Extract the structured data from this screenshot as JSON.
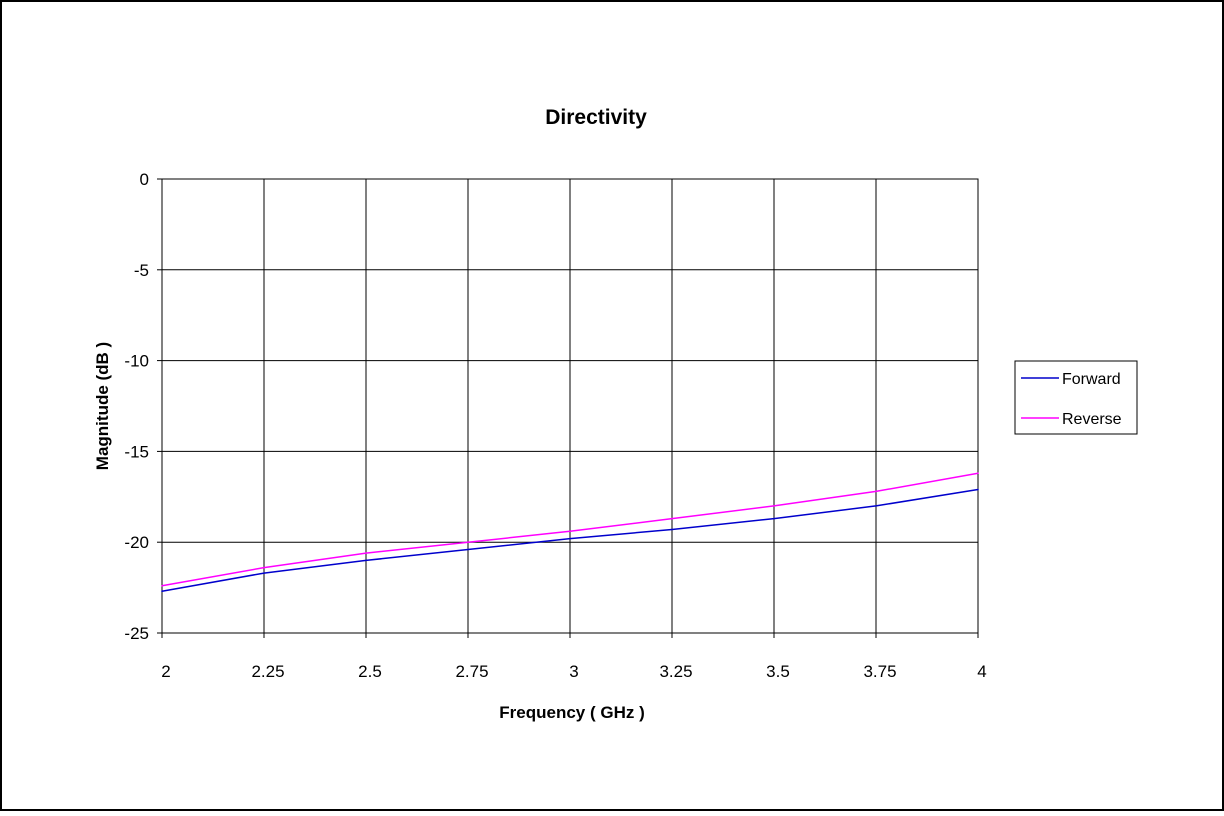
{
  "chart_data": {
    "type": "line",
    "title": "Directivity",
    "xlabel": "Frequency ( GHz )",
    "ylabel": "Magnitude (dB )",
    "xlim": [
      2,
      4
    ],
    "ylim": [
      -25,
      0
    ],
    "x_ticks": [
      "2",
      "2.25",
      "2.5",
      "2.75",
      "3",
      "3.25",
      "3.5",
      "3.75",
      "4"
    ],
    "y_ticks": [
      "0",
      "-5",
      "-10",
      "-15",
      "-20",
      "-25"
    ],
    "grid": true,
    "legend_position": "right",
    "x": [
      2.0,
      2.25,
      2.5,
      2.75,
      3.0,
      3.25,
      3.5,
      3.75,
      4.0
    ],
    "series": [
      {
        "name": "Forward",
        "color": "#0000cc",
        "values": [
          -22.7,
          -21.7,
          -21.0,
          -20.4,
          -19.8,
          -19.3,
          -18.7,
          -18.0,
          -17.1
        ]
      },
      {
        "name": "Reverse",
        "color": "#ff00ff",
        "values": [
          -22.4,
          -21.4,
          -20.6,
          -20.0,
          -19.4,
          -18.7,
          -18.0,
          -17.2,
          -16.2
        ]
      }
    ]
  }
}
